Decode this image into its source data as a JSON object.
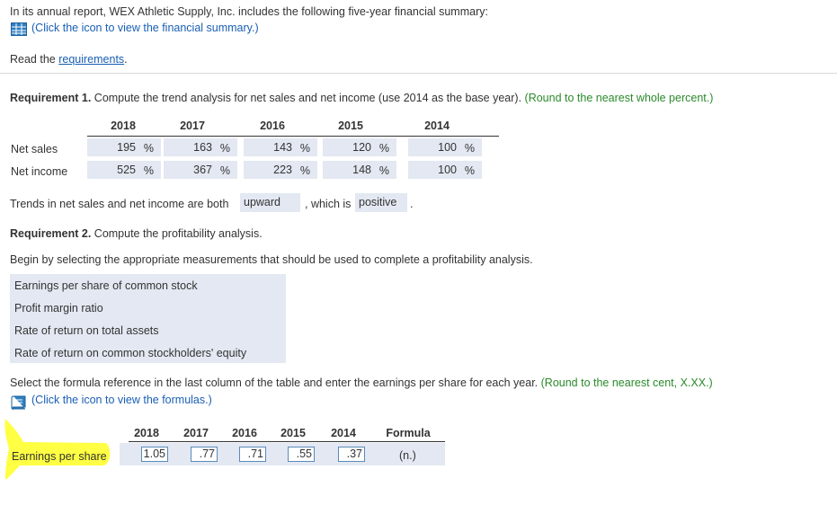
{
  "intro": {
    "text": "In its annual report, WEX Athletic Supply, Inc. includes the following five-year financial summary:",
    "summary_link": "(Click the icon to view the financial summary.)",
    "read_prefix": "Read the ",
    "requirements_link": "requirements",
    "read_suffix": "."
  },
  "req1": {
    "label": "Requirement 1.",
    "text": " Compute the trend analysis for net sales and net income (use 2014 as the base year).",
    "note": " (Round to the nearest whole percent.)",
    "years": [
      "2018",
      "2017",
      "2016",
      "2015",
      "2014"
    ],
    "rows": [
      {
        "label": "Net sales",
        "values": [
          "195",
          "163",
          "143",
          "120",
          "100"
        ]
      },
      {
        "label": "Net income",
        "values": [
          "525",
          "367",
          "223",
          "148",
          "100"
        ]
      }
    ],
    "pct_symbol": "%",
    "trend_prefix": "Trends in net sales and net income are both",
    "trend_select1": "upward",
    "trend_middle": ", which is",
    "trend_select2": "positive",
    "trend_suffix": "."
  },
  "req2": {
    "label": "Requirement 2.",
    "text": " Compute the profitability analysis.",
    "instruction": "Begin by selecting the appropriate measurements that should be used to complete a profitability analysis.",
    "measurements": [
      "Earnings per share of common stock",
      "Profit margin ratio",
      "Rate of return on total assets",
      "Rate of return on common stockholders' equity"
    ],
    "formula_instruction": "Select the formula reference in the last column of the table and enter the earnings per share for each year.",
    "formula_note": " (Round to the nearest cent, X.XX.)",
    "formula_link": "(Click the icon to view the formulas.)",
    "eps_years": [
      "2018",
      "2017",
      "2016",
      "2015",
      "2014"
    ],
    "formula_header": "Formula",
    "eps_label": "Earnings per share",
    "eps_values": [
      "1.05",
      ".77",
      ".71",
      ".55",
      ".37"
    ],
    "formula_value": "(n.)"
  },
  "icons": {
    "summary": "table-grid-icon",
    "formulas": "book-icon"
  },
  "colors": {
    "green_note": "#2a8a2a",
    "link_blue": "#1a5fb4",
    "cell_fill": "#e3e8f2",
    "highlight": "#ffff33"
  }
}
